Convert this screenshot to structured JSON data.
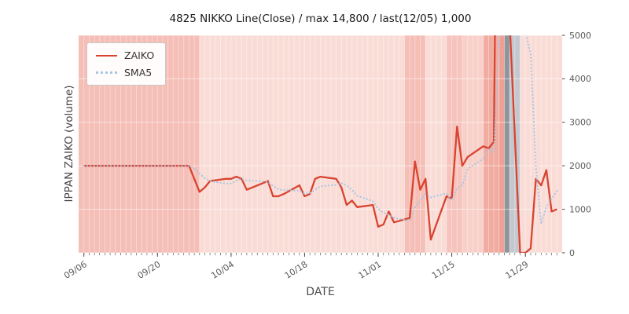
{
  "chart_data": {
    "type": "line",
    "title": "4825 NIKKO Line(Close) / max 14,800 / last(12/05) 1,000",
    "xlabel": "DATE",
    "ylabel": "IPPAN ZAIKO (volume)",
    "ylim": [
      0,
      5000
    ],
    "yticks": [
      0,
      1000,
      2000,
      3000,
      4000,
      5000
    ],
    "xtick_labels": [
      "09/06",
      "09/20",
      "10/04",
      "10/18",
      "11/01",
      "11/15",
      "11/29"
    ],
    "x_axis": {
      "start": "09/05",
      "end": "12/06",
      "minor_ticks": "daily"
    },
    "grid": {
      "vertical_daily": true,
      "horizontal": true,
      "color": "#ffffff"
    },
    "legend": {
      "position": "upper-left",
      "entries": [
        "ZAIKO",
        "SMA5"
      ]
    },
    "annotations": {
      "max": 14800,
      "last_date": "12/05",
      "last_value": 1000
    },
    "series": [
      {
        "name": "ZAIKO",
        "color": "#d9432f",
        "style": "solid",
        "points": [
          [
            "09/06",
            2000
          ],
          [
            "09/07",
            2000
          ],
          [
            "09/08",
            2000
          ],
          [
            "09/09",
            2000
          ],
          [
            "09/12",
            2000
          ],
          [
            "09/13",
            2000
          ],
          [
            "09/14",
            2000
          ],
          [
            "09/15",
            2000
          ],
          [
            "09/16",
            2000
          ],
          [
            "09/19",
            2000
          ],
          [
            "09/20",
            2000
          ],
          [
            "09/21",
            2000
          ],
          [
            "09/22",
            2000
          ],
          [
            "09/23",
            2000
          ],
          [
            "09/26",
            2000
          ],
          [
            "09/27",
            1700
          ],
          [
            "09/28",
            1400
          ],
          [
            "09/29",
            1500
          ],
          [
            "09/30",
            1650
          ],
          [
            "10/03",
            1700
          ],
          [
            "10/04",
            1700
          ],
          [
            "10/05",
            1750
          ],
          [
            "10/06",
            1700
          ],
          [
            "10/07",
            1450
          ],
          [
            "10/10",
            1600
          ],
          [
            "10/11",
            1650
          ],
          [
            "10/12",
            1300
          ],
          [
            "10/13",
            1300
          ],
          [
            "10/14",
            1350
          ],
          [
            "10/17",
            1550
          ],
          [
            "10/18",
            1300
          ],
          [
            "10/19",
            1350
          ],
          [
            "10/20",
            1700
          ],
          [
            "10/21",
            1750
          ],
          [
            "10/24",
            1700
          ],
          [
            "10/25",
            1500
          ],
          [
            "10/26",
            1100
          ],
          [
            "10/27",
            1200
          ],
          [
            "10/28",
            1050
          ],
          [
            "10/31",
            1100
          ],
          [
            "11/01",
            600
          ],
          [
            "11/02",
            650
          ],
          [
            "11/03",
            950
          ],
          [
            "11/04",
            700
          ],
          [
            "11/07",
            800
          ],
          [
            "11/08",
            2100
          ],
          [
            "11/09",
            1450
          ],
          [
            "11/10",
            1700
          ],
          [
            "11/11",
            300
          ],
          [
            "11/14",
            1300
          ],
          [
            "11/15",
            1250
          ],
          [
            "11/16",
            2900
          ],
          [
            "11/17",
            2000
          ],
          [
            "11/18",
            2200
          ],
          [
            "11/21",
            2450
          ],
          [
            "11/22",
            2400
          ],
          [
            "11/23",
            2550
          ],
          [
            "11/24",
            14800
          ],
          [
            "11/25",
            8000
          ],
          [
            "11/28",
            0
          ],
          [
            "11/29",
            0
          ],
          [
            "11/30",
            100
          ],
          [
            "12/01",
            1700
          ],
          [
            "12/02",
            1550
          ],
          [
            "12/03",
            1900
          ],
          [
            "12/04",
            950
          ],
          [
            "12/05",
            1000
          ]
        ]
      },
      {
        "name": "SMA5",
        "color": "#a9c6e0",
        "style": "dotted",
        "derived": "5-point moving average of ZAIKO"
      }
    ],
    "background_bands": [
      {
        "from": "09/05",
        "to": "09/28",
        "color": "#f5beb6"
      },
      {
        "from": "09/28",
        "to": "11/06",
        "color": "#fadcd7"
      },
      {
        "from": "11/06",
        "to": "11/10",
        "color": "#f5beb6"
      },
      {
        "from": "11/10",
        "to": "11/14",
        "color": "#fadcd7"
      },
      {
        "from": "11/14",
        "to": "11/17",
        "color": "#f6c4bc"
      },
      {
        "from": "11/17",
        "to": "11/21",
        "color": "#f8d0c9"
      },
      {
        "from": "11/21",
        "to": "11/24",
        "color": "#f1aba0"
      },
      {
        "from": "11/24",
        "to": "11/25",
        "color": "#efa095"
      },
      {
        "from": "11/25",
        "to": "11/26",
        "color": "#8f959d"
      },
      {
        "from": "11/26",
        "to": "11/28",
        "color": "#c4c8ce"
      },
      {
        "from": "11/28",
        "to": "12/06",
        "color": "#fadcd7"
      }
    ]
  }
}
